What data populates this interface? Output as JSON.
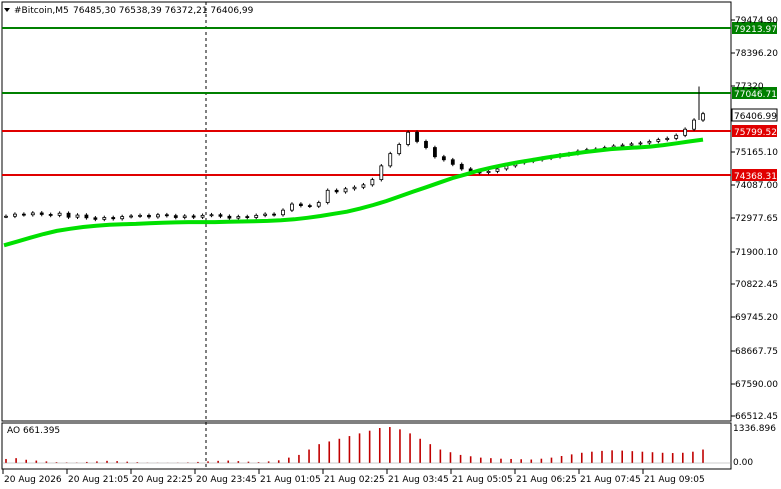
{
  "header": {
    "symbol": "#Bitcoin,M5",
    "ohlc": "76485,30 76538,39 76372,21 76406,99"
  },
  "indicator": {
    "label": "AO 661.395",
    "scale_top": "1336.896",
    "scale_zero": "0.00"
  },
  "price_axis": [
    "79474.90",
    "78396.20",
    "77320",
    "76406.99",
    "75165.10",
    "74087.00",
    "72977.65",
    "71900.10",
    "70822.45",
    "69745.20",
    "68667.75",
    "67590.00",
    "66512.45"
  ],
  "time_axis": [
    "20 Aug 2026",
    "20 Aug 21:05",
    "20 Aug 22:25",
    "20 Aug 23:45",
    "21 Aug 01:05",
    "21 Aug 02:25",
    "21 Aug 03:45",
    "21 Aug 05:05",
    "21 Aug 06:25",
    "21 Aug 07:45",
    "21 Aug 09:05"
  ],
  "levels": [
    {
      "label": "79213.97",
      "color": "#008000"
    },
    {
      "label": "77046.71",
      "color": "#008000"
    },
    {
      "label": "75799.52",
      "color": "#e00000"
    },
    {
      "label": "74368.31",
      "color": "#e00000"
    }
  ],
  "current_price": "76406.99",
  "colors": {
    "ma": "#00e000",
    "level_green": "#008000",
    "level_red": "#e00000",
    "ao_bar": "#c00000"
  },
  "chart_data": {
    "type": "line",
    "title": "#Bitcoin,M5",
    "ylim": [
      66512.45,
      79474.9
    ],
    "series": [
      {
        "values": [
          73050,
          73120,
          73100,
          73160,
          73110,
          73080,
          73150,
          73020,
          73090,
          73000,
          72950,
          73010,
          72970,
          73040,
          73060,
          73080,
          73030,
          73100,
          73070,
          73010,
          73060,
          73020,
          73080,
          73100,
          73050,
          72990,
          73040,
          73010,
          73080,
          73120,
          73100,
          73250,
          73450,
          73400,
          73380,
          73500,
          73900,
          73850,
          73950,
          74000,
          74080,
          74250,
          74700,
          75100,
          75400,
          75800,
          75500,
          75300,
          75000,
          74900,
          74750,
          74600,
          74500,
          74480,
          74520,
          74600,
          74700,
          74800,
          74850,
          74900,
          74950,
          75000,
          75060,
          75100,
          75180,
          75230,
          75250,
          75300,
          75350,
          75380,
          75420,
          75450,
          75500,
          75560,
          75600,
          75700,
          75900,
          76200,
          76406.99
        ]
      },
      {
        "values": [
          72100,
          72220,
          72350,
          72470,
          72570,
          72640,
          72700,
          72740,
          72770,
          72790,
          72800,
          72820,
          72840,
          72850,
          72860,
          72860,
          72860,
          72870,
          72880,
          72890,
          72900,
          72920,
          72950,
          73000,
          73060,
          73130,
          73200,
          73300,
          73420,
          73550,
          73700,
          73850,
          74000,
          74150,
          74300,
          74420,
          74550,
          74650,
          74740,
          74820,
          74890,
          74960,
          75030,
          75090,
          75150,
          75200,
          75250,
          75280,
          75300,
          75330,
          75380,
          75440,
          75500,
          75560
        ]
      }
    ],
    "ao": [
      150,
      180,
      120,
      90,
      60,
      30,
      20,
      15,
      40,
      60,
      80,
      70,
      50,
      30,
      10,
      8,
      5,
      10,
      20,
      40,
      60,
      80,
      90,
      70,
      50,
      30,
      60,
      100,
      200,
      300,
      500,
      700,
      800,
      900,
      1000,
      1100,
      1200,
      1300,
      1336,
      1250,
      1100,
      900,
      700,
      500,
      400,
      300,
      250,
      200,
      180,
      160,
      150,
      140,
      130,
      160,
      200,
      260,
      320,
      380,
      420,
      450,
      470,
      460,
      440,
      420,
      400,
      380,
      370,
      380,
      420,
      500
    ]
  }
}
